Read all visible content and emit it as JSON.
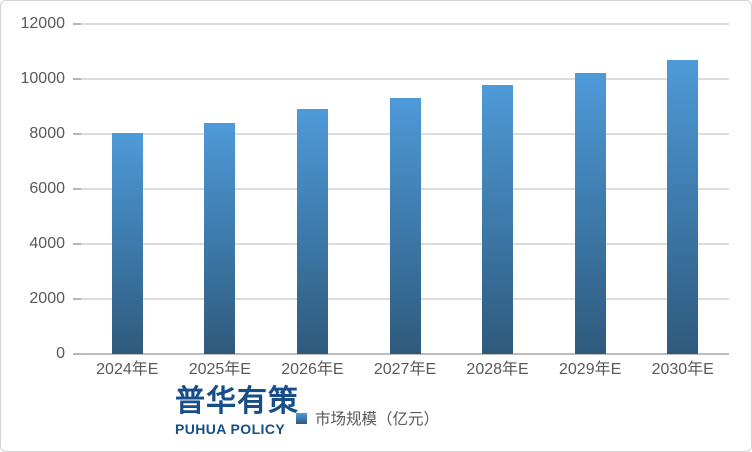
{
  "chart_data": {
    "type": "bar",
    "categories": [
      "2024年E",
      "2025年E",
      "2026年E",
      "2027年E",
      "2028年E",
      "2029年E",
      "2030年E"
    ],
    "values": [
      8040,
      8400,
      8890,
      9290,
      9780,
      10220,
      10660
    ],
    "series_name": "市场规模（亿元）",
    "title": "",
    "xlabel": "",
    "ylabel": "",
    "ylim": [
      0,
      12000
    ],
    "yticks": [
      0,
      2000,
      4000,
      6000,
      8000,
      10000,
      12000
    ],
    "grid": true,
    "legend_position": "bottom-center"
  },
  "legend": {
    "label": "市场规模（亿元）",
    "marker": "square-icon"
  },
  "branding": {
    "logo_cn": "普华有策",
    "logo_en": "PUHUA POLICY"
  },
  "colors": {
    "bar_gradient_top": "#4e9ad9",
    "bar_gradient_bottom": "#2e5a7c",
    "axis_text": "#595959",
    "gridline": "#dcdcdc",
    "axis_line": "#bdbdbd",
    "tick": "#b5b5b5",
    "logo_blue": "#174e87",
    "card_border": "#d4d4d4"
  }
}
